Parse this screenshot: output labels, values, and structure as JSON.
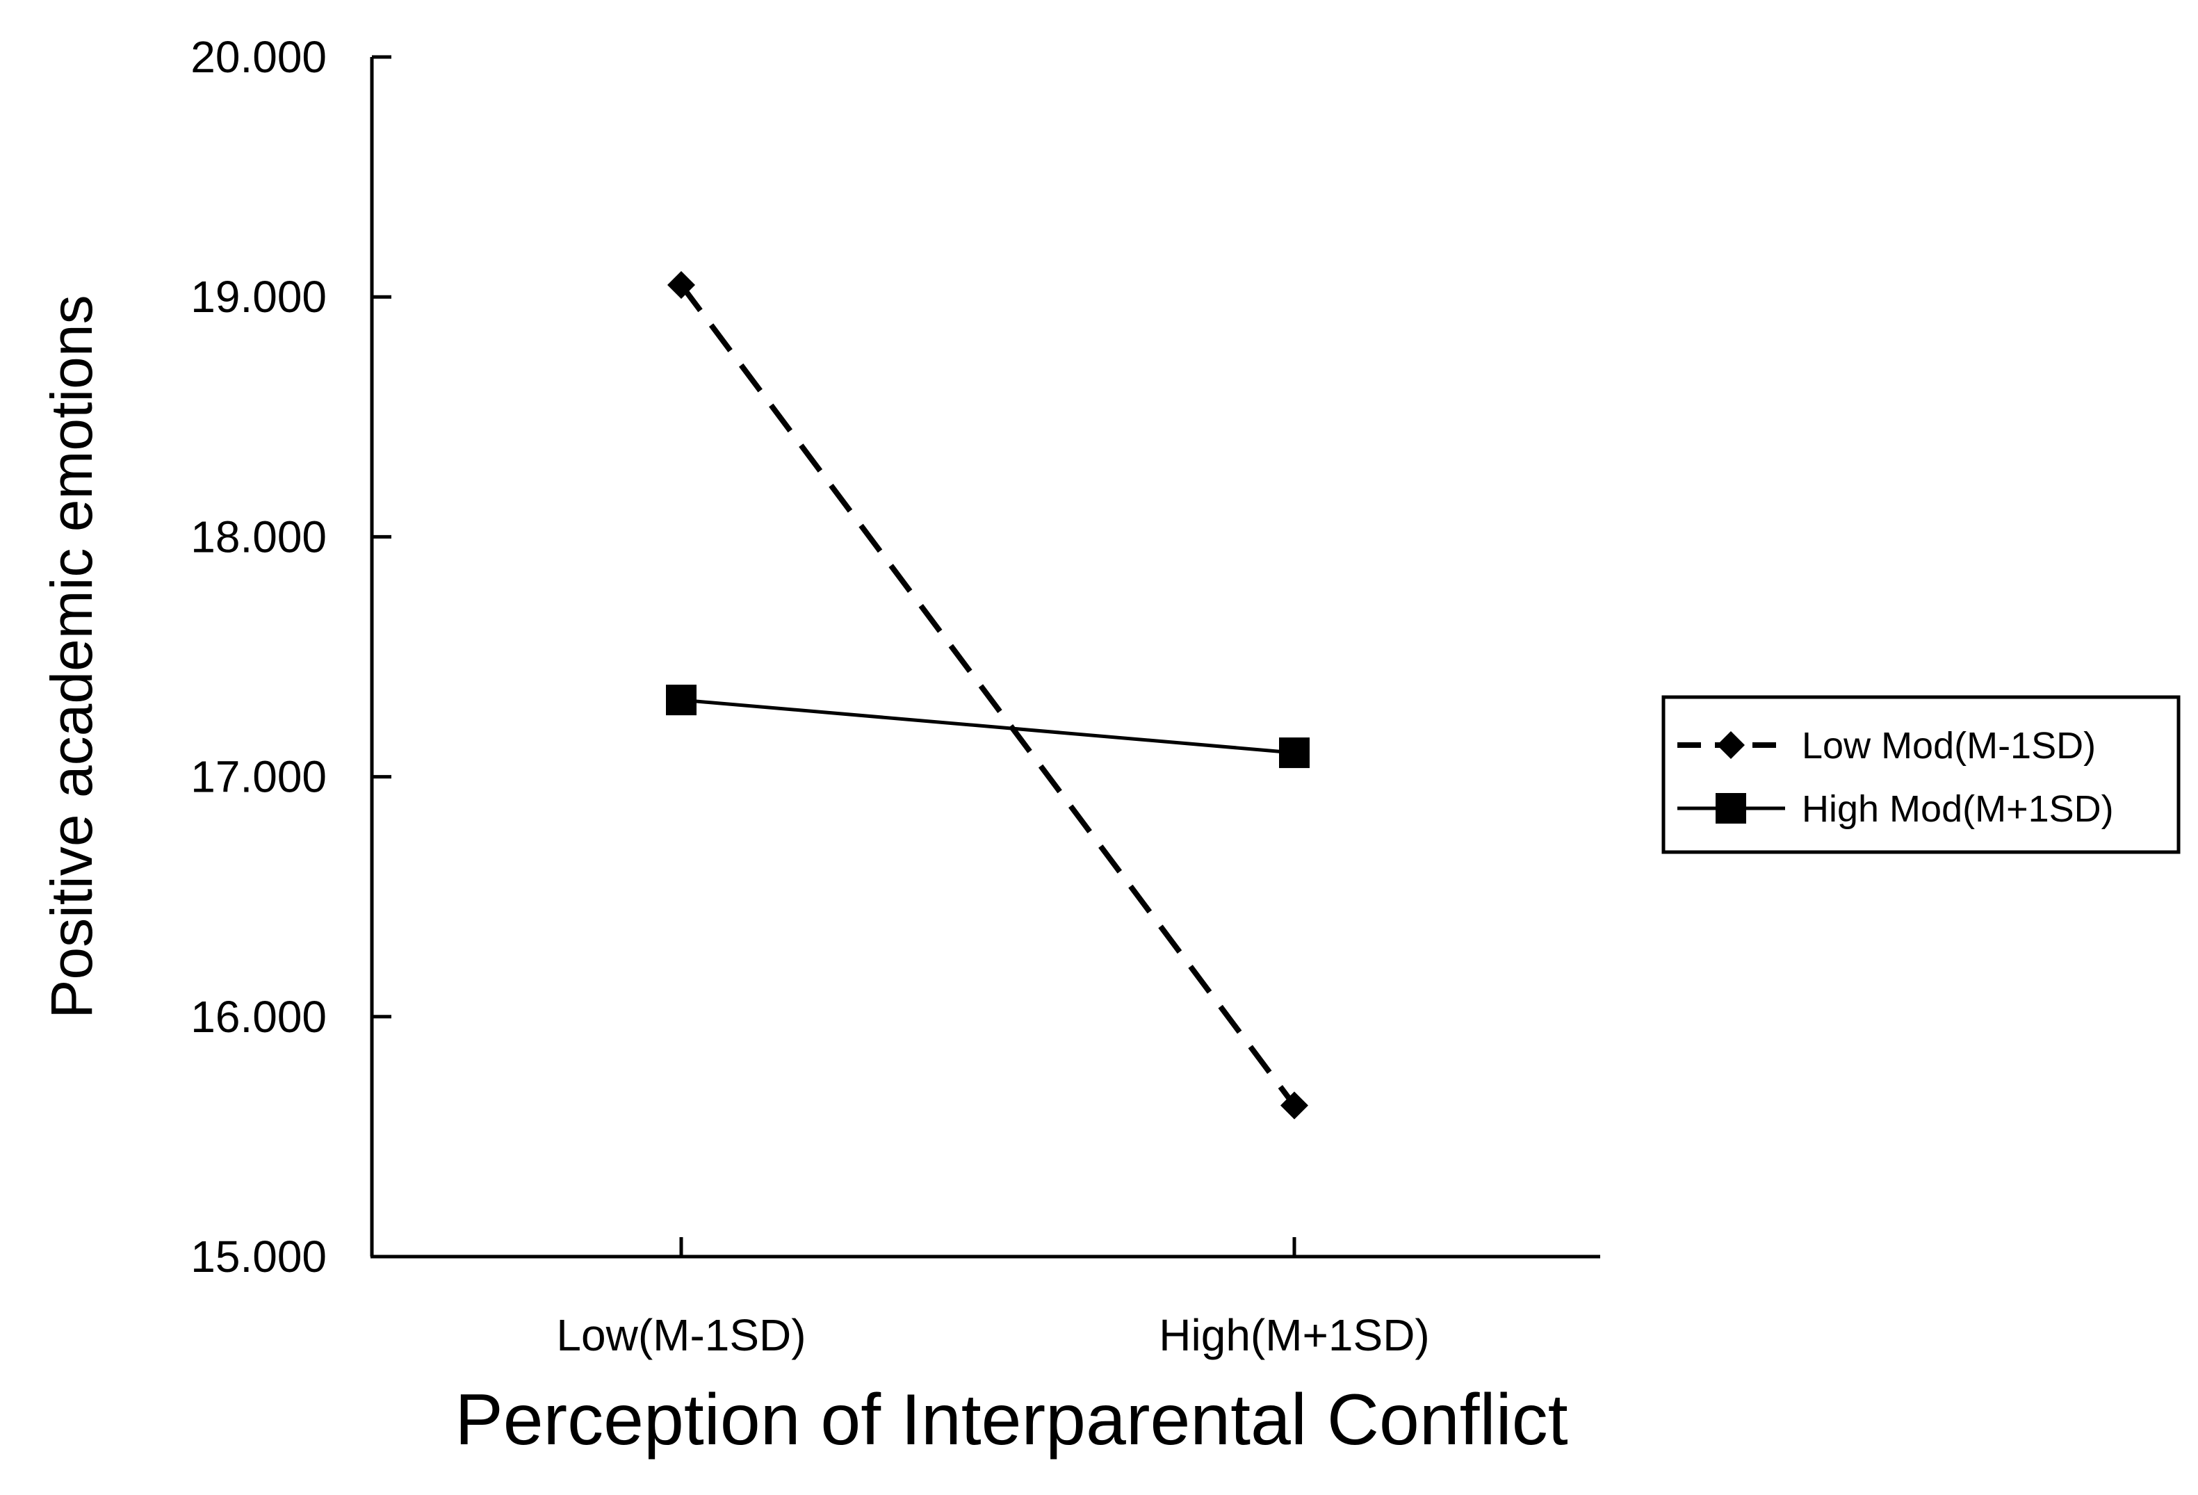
{
  "chart_data": {
    "type": "line",
    "title": "",
    "xlabel": "Perception of Interparental Conflict",
    "ylabel": "Positive academic emotions",
    "categories": [
      "Low(M-1SD)",
      "High(M+1SD)"
    ],
    "ylim": [
      15,
      20
    ],
    "yticks": [
      "15.000",
      "16.000",
      "17.000",
      "18.000",
      "19.000",
      "20.000"
    ],
    "ytick_values": [
      15,
      16,
      17,
      18,
      19,
      20
    ],
    "grid": false,
    "legend_position": "right",
    "series": [
      {
        "name": "Low Mod(M-1SD)",
        "values": [
          19.05,
          15.63
        ],
        "line": "dashed",
        "marker": "diamond",
        "color": "#000000"
      },
      {
        "name": "High Mod(M+1SD)",
        "values": [
          17.32,
          17.1
        ],
        "line": "solid",
        "marker": "square",
        "color": "#000000"
      }
    ]
  }
}
